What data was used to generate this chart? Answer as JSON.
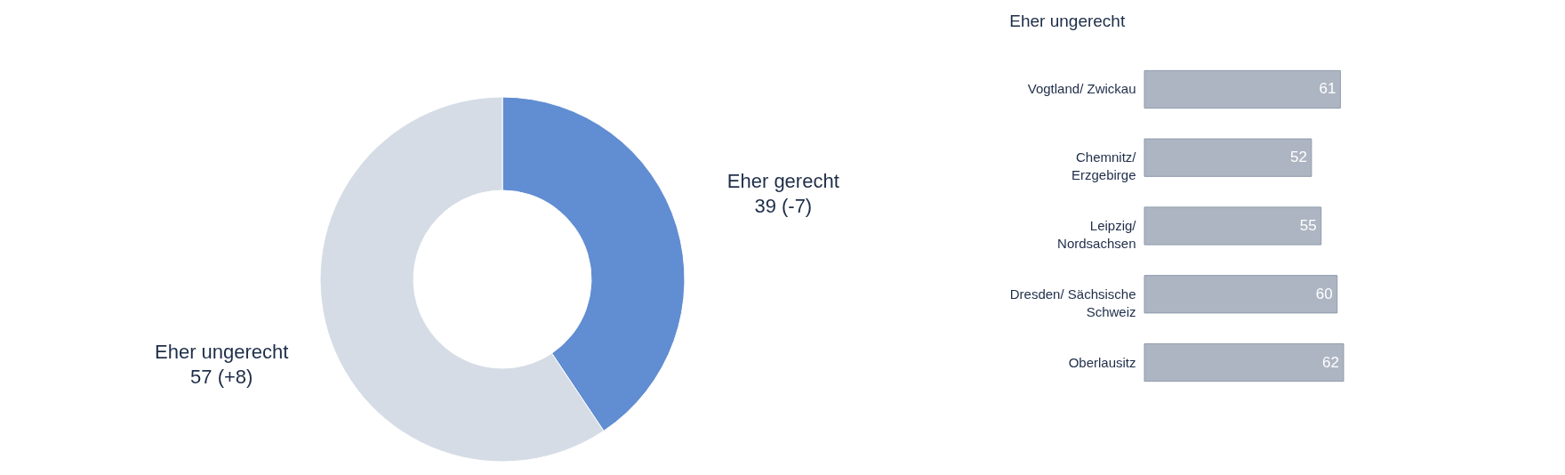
{
  "chart_data": [
    {
      "type": "donut",
      "categories": [
        "Eher gerecht",
        "Eher ungerecht"
      ],
      "values": [
        39,
        57
      ],
      "colors": [
        "#618dd2",
        "#d5dce5"
      ],
      "value_labels": [
        "39 (-7)",
        "57 (+8)"
      ]
    },
    {
      "type": "bar",
      "orientation": "horizontal",
      "title": "Eher ungerecht",
      "categories": [
        "Vogtland/ Zwickau",
        "Chemnitz/\nErzgebirge",
        "Leipzig/\nNordsachsen",
        "Dresden/ Sächsische\nSchweiz",
        "Oberlausitz"
      ],
      "values": [
        61,
        52,
        55,
        60,
        62
      ],
      "color": "#adb5c2",
      "data_labels": true
    }
  ]
}
